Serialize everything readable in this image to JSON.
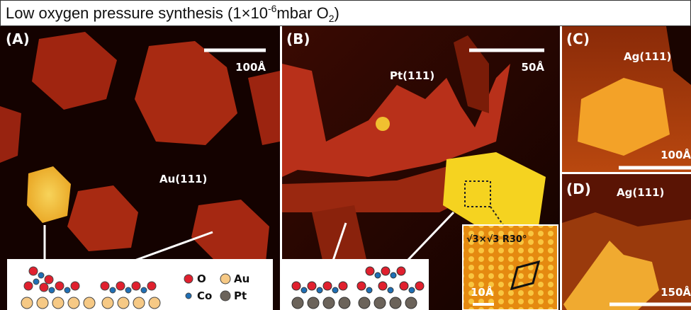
{
  "header": {
    "title": {
      "main": "Low oxygen pressure synthesis (1×10",
      "exponent": "-6",
      "unit": "mbar O",
      "subscript": "2",
      "end": ")"
    }
  },
  "panels": [
    {
      "label": "(A)",
      "scale_bar": "100Å",
      "substrate": "Au(111)",
      "legend": [
        "O",
        "Au",
        "Co",
        "Pt"
      ]
    },
    {
      "label": "(B)",
      "scale_bar": "50Å",
      "substrate": "Pt(111)",
      "inset": {
        "structure": "√3×√3 R30°",
        "scale_bar": "10Å"
      }
    },
    {
      "label": "(C)",
      "scale_bar": "100Å",
      "substrate": "Ag(111)"
    },
    {
      "label": "(D)",
      "scale_bar": "150Å",
      "substrate": "Ag(111)"
    }
  ]
}
